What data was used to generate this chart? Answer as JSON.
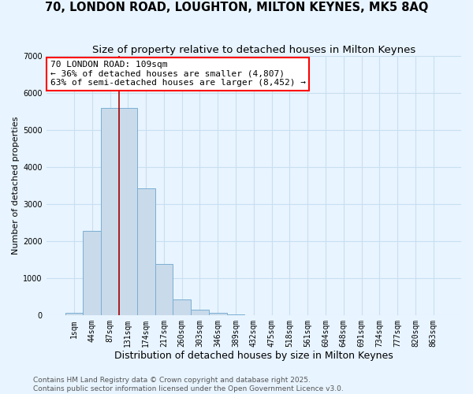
{
  "title": "70, LONDON ROAD, LOUGHTON, MILTON KEYNES, MK5 8AQ",
  "subtitle": "Size of property relative to detached houses in Milton Keynes",
  "xlabel": "Distribution of detached houses by size in Milton Keynes",
  "ylabel": "Number of detached properties",
  "categories": [
    "1sqm",
    "44sqm",
    "87sqm",
    "131sqm",
    "174sqm",
    "217sqm",
    "260sqm",
    "303sqm",
    "346sqm",
    "389sqm",
    "432sqm",
    "475sqm",
    "518sqm",
    "561sqm",
    "604sqm",
    "648sqm",
    "691sqm",
    "734sqm",
    "777sqm",
    "820sqm",
    "863sqm"
  ],
  "values": [
    60,
    2280,
    5580,
    5580,
    3420,
    1380,
    420,
    150,
    60,
    30,
    0,
    0,
    0,
    0,
    0,
    0,
    0,
    0,
    0,
    0,
    0
  ],
  "bar_color": "#c9daea",
  "bar_edge_color": "#7bafd4",
  "grid_color": "#c8dff0",
  "background_color": "#e8f4ff",
  "vline_x": 2.5,
  "vline_color": "#aa0000",
  "annotation_text": "70 LONDON ROAD: 109sqm\n← 36% of detached houses are smaller (4,807)\n63% of semi-detached houses are larger (8,452) →",
  "annotation_box_color": "white",
  "annotation_box_edge_color": "red",
  "ylim": [
    0,
    7000
  ],
  "yticks": [
    0,
    1000,
    2000,
    3000,
    4000,
    5000,
    6000,
    7000
  ],
  "footer_line1": "Contains HM Land Registry data © Crown copyright and database right 2025.",
  "footer_line2": "Contains public sector information licensed under the Open Government Licence v3.0.",
  "title_fontsize": 10.5,
  "subtitle_fontsize": 9.5,
  "xlabel_fontsize": 9,
  "ylabel_fontsize": 8,
  "tick_fontsize": 7,
  "annotation_fontsize": 8,
  "footer_fontsize": 6.5
}
